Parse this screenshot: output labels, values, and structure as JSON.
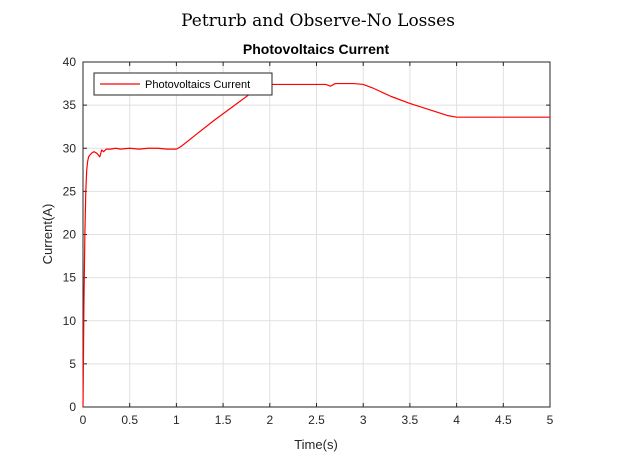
{
  "figure": {
    "suptitle": "Petrurb and Observe-No Losses"
  },
  "chart_data": {
    "type": "line",
    "title": "Photovoltaics Current",
    "xlabel": "Time(s)",
    "ylabel": "Current(A)",
    "xlim": [
      0,
      5
    ],
    "ylim": [
      0,
      40
    ],
    "xticks": [
      "0",
      "0.5",
      "1",
      "1.5",
      "2",
      "2.5",
      "3",
      "3.5",
      "4",
      "4.5",
      "5"
    ],
    "yticks": [
      "0",
      "5",
      "10",
      "15",
      "20",
      "25",
      "30",
      "35",
      "40"
    ],
    "grid": true,
    "legend": {
      "position": "top-left",
      "entries": [
        "Photovoltaics Current"
      ]
    },
    "series": [
      {
        "name": "Photovoltaics Current",
        "color": "#ff0000",
        "x": [
          0,
          0.01,
          0.02,
          0.03,
          0.04,
          0.05,
          0.06,
          0.08,
          0.1,
          0.12,
          0.15,
          0.18,
          0.2,
          0.22,
          0.25,
          0.3,
          0.35,
          0.4,
          0.5,
          0.6,
          0.7,
          0.8,
          0.9,
          1.0,
          1.05,
          1.2,
          1.4,
          1.6,
          1.8,
          1.9,
          2.0,
          2.1,
          2.2,
          2.4,
          2.5,
          2.6,
          2.65,
          2.7,
          2.8,
          2.9,
          3.0,
          3.1,
          3.3,
          3.5,
          3.7,
          3.9,
          4.0,
          4.2,
          4.5,
          4.8,
          5.0
        ],
        "values": [
          0,
          12,
          20,
          25,
          27.5,
          28.5,
          29,
          29.3,
          29.5,
          29.6,
          29.4,
          29.0,
          29.8,
          29.6,
          29.9,
          29.9,
          30.0,
          29.9,
          30.0,
          29.9,
          30.0,
          30.0,
          29.9,
          29.9,
          30.2,
          31.5,
          33.2,
          34.8,
          36.4,
          37.1,
          37.4,
          37.4,
          37.4,
          37.4,
          37.4,
          37.4,
          37.2,
          37.5,
          37.5,
          37.5,
          37.4,
          37.0,
          36.0,
          35.2,
          34.5,
          33.8,
          33.6,
          33.6,
          33.6,
          33.6,
          33.6
        ]
      }
    ]
  }
}
